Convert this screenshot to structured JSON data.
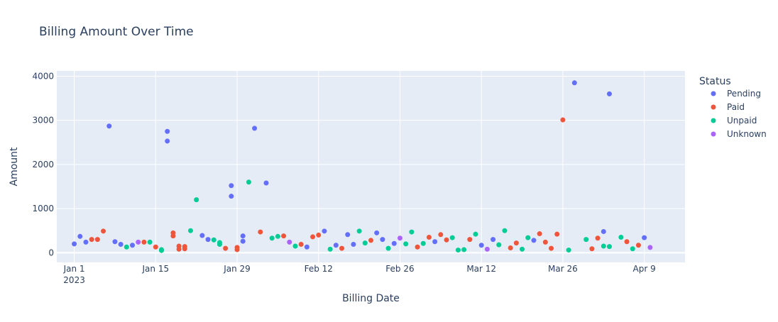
{
  "colors": {
    "plot_bg": "#e5ecf6",
    "paper_bg": "#ffffff",
    "grid": "#ffffff",
    "text": "#2a3f5f"
  },
  "chart_data": {
    "type": "scatter",
    "title": "Billing Amount Over Time",
    "xlabel": "Billing Date",
    "ylabel": "Amount",
    "xlim": [
      "2022-12-29",
      "2023-04-16"
    ],
    "ylim": [
      -220,
      4120
    ],
    "x_ticks": [
      {
        "date": "2023-01-01",
        "label": "Jan 1",
        "sublabel": "2023"
      },
      {
        "date": "2023-01-15",
        "label": "Jan 15"
      },
      {
        "date": "2023-01-29",
        "label": "Jan 29"
      },
      {
        "date": "2023-02-12",
        "label": "Feb 12"
      },
      {
        "date": "2023-02-26",
        "label": "Feb 26"
      },
      {
        "date": "2023-03-12",
        "label": "Mar 12"
      },
      {
        "date": "2023-03-26",
        "label": "Mar 26"
      },
      {
        "date": "2023-04-09",
        "label": "Apr 9"
      }
    ],
    "y_ticks": [
      0,
      1000,
      2000,
      3000,
      4000
    ],
    "y_tick_labels": [
      "0",
      "1000",
      "2000",
      "3000",
      "4000"
    ],
    "grid": true,
    "legend": {
      "title": "Status",
      "position": "right"
    },
    "series": [
      {
        "name": "Pending",
        "color": "#636efa",
        "points": [
          {
            "x": "2023-01-01",
            "y": 200
          },
          {
            "x": "2023-01-02",
            "y": 370
          },
          {
            "x": "2023-01-03",
            "y": 240
          },
          {
            "x": "2023-01-07",
            "y": 2870
          },
          {
            "x": "2023-01-08",
            "y": 250
          },
          {
            "x": "2023-01-09",
            "y": 190
          },
          {
            "x": "2023-01-11",
            "y": 170
          },
          {
            "x": "2023-01-17",
            "y": 2750
          },
          {
            "x": "2023-01-17",
            "y": 2530
          },
          {
            "x": "2023-01-23",
            "y": 390
          },
          {
            "x": "2023-01-24",
            "y": 300
          },
          {
            "x": "2023-01-28",
            "y": 1520
          },
          {
            "x": "2023-01-28",
            "y": 1280
          },
          {
            "x": "2023-01-30",
            "y": 380
          },
          {
            "x": "2023-01-30",
            "y": 260
          },
          {
            "x": "2023-02-01",
            "y": 2820
          },
          {
            "x": "2023-02-03",
            "y": 1580
          },
          {
            "x": "2023-02-10",
            "y": 130
          },
          {
            "x": "2023-02-13",
            "y": 490
          },
          {
            "x": "2023-02-15",
            "y": 170
          },
          {
            "x": "2023-02-17",
            "y": 410
          },
          {
            "x": "2023-02-18",
            "y": 190
          },
          {
            "x": "2023-02-22",
            "y": 450
          },
          {
            "x": "2023-02-23",
            "y": 300
          },
          {
            "x": "2023-02-25",
            "y": 210
          },
          {
            "x": "2023-03-04",
            "y": 250
          },
          {
            "x": "2023-03-12",
            "y": 170
          },
          {
            "x": "2023-03-14",
            "y": 300
          },
          {
            "x": "2023-03-21",
            "y": 280
          },
          {
            "x": "2023-03-28",
            "y": 3850
          },
          {
            "x": "2023-04-02",
            "y": 480
          },
          {
            "x": "2023-04-03",
            "y": 3600
          },
          {
            "x": "2023-04-09",
            "y": 340
          }
        ]
      },
      {
        "name": "Paid",
        "color": "#ef553b",
        "points": [
          {
            "x": "2023-01-04",
            "y": 300
          },
          {
            "x": "2023-01-05",
            "y": 300
          },
          {
            "x": "2023-01-06",
            "y": 490
          },
          {
            "x": "2023-01-13",
            "y": 240
          },
          {
            "x": "2023-01-15",
            "y": 130
          },
          {
            "x": "2023-01-18",
            "y": 450
          },
          {
            "x": "2023-01-18",
            "y": 380
          },
          {
            "x": "2023-01-19",
            "y": 150
          },
          {
            "x": "2023-01-19",
            "y": 80
          },
          {
            "x": "2023-01-20",
            "y": 140
          },
          {
            "x": "2023-01-20",
            "y": 90
          },
          {
            "x": "2023-01-27",
            "y": 100
          },
          {
            "x": "2023-01-29",
            "y": 120
          },
          {
            "x": "2023-01-29",
            "y": 70
          },
          {
            "x": "2023-02-02",
            "y": 470
          },
          {
            "x": "2023-02-06",
            "y": 380
          },
          {
            "x": "2023-02-09",
            "y": 190
          },
          {
            "x": "2023-02-11",
            "y": 360
          },
          {
            "x": "2023-02-12",
            "y": 400
          },
          {
            "x": "2023-02-16",
            "y": 100
          },
          {
            "x": "2023-02-21",
            "y": 280
          },
          {
            "x": "2023-03-01",
            "y": 130
          },
          {
            "x": "2023-03-03",
            "y": 350
          },
          {
            "x": "2023-03-05",
            "y": 410
          },
          {
            "x": "2023-03-06",
            "y": 290
          },
          {
            "x": "2023-03-10",
            "y": 300
          },
          {
            "x": "2023-03-17",
            "y": 110
          },
          {
            "x": "2023-03-18",
            "y": 220
          },
          {
            "x": "2023-03-22",
            "y": 430
          },
          {
            "x": "2023-03-23",
            "y": 240
          },
          {
            "x": "2023-03-24",
            "y": 100
          },
          {
            "x": "2023-03-25",
            "y": 420
          },
          {
            "x": "2023-03-26",
            "y": 3010
          },
          {
            "x": "2023-03-31",
            "y": 90
          },
          {
            "x": "2023-04-01",
            "y": 330
          },
          {
            "x": "2023-04-06",
            "y": 250
          },
          {
            "x": "2023-04-08",
            "y": 170
          }
        ]
      },
      {
        "name": "Unpaid",
        "color": "#00cc96",
        "points": [
          {
            "x": "2023-01-10",
            "y": 130
          },
          {
            "x": "2023-01-14",
            "y": 240
          },
          {
            "x": "2023-01-16",
            "y": 70
          },
          {
            "x": "2023-01-16",
            "y": 50
          },
          {
            "x": "2023-01-21",
            "y": 500
          },
          {
            "x": "2023-01-22",
            "y": 1200
          },
          {
            "x": "2023-01-25",
            "y": 290
          },
          {
            "x": "2023-01-26",
            "y": 230
          },
          {
            "x": "2023-01-26",
            "y": 190
          },
          {
            "x": "2023-01-31",
            "y": 1600
          },
          {
            "x": "2023-02-04",
            "y": 330
          },
          {
            "x": "2023-02-05",
            "y": 370
          },
          {
            "x": "2023-02-08",
            "y": 150
          },
          {
            "x": "2023-02-14",
            "y": 80
          },
          {
            "x": "2023-02-19",
            "y": 490
          },
          {
            "x": "2023-02-20",
            "y": 220
          },
          {
            "x": "2023-02-24",
            "y": 100
          },
          {
            "x": "2023-02-27",
            "y": 200
          },
          {
            "x": "2023-02-28",
            "y": 470
          },
          {
            "x": "2023-03-02",
            "y": 210
          },
          {
            "x": "2023-03-07",
            "y": 340
          },
          {
            "x": "2023-03-08",
            "y": 60
          },
          {
            "x": "2023-03-09",
            "y": 70
          },
          {
            "x": "2023-03-11",
            "y": 420
          },
          {
            "x": "2023-03-15",
            "y": 180
          },
          {
            "x": "2023-03-16",
            "y": 500
          },
          {
            "x": "2023-03-19",
            "y": 80
          },
          {
            "x": "2023-03-20",
            "y": 340
          },
          {
            "x": "2023-03-27",
            "y": 60
          },
          {
            "x": "2023-03-30",
            "y": 300
          },
          {
            "x": "2023-04-02",
            "y": 150
          },
          {
            "x": "2023-04-03",
            "y": 140
          },
          {
            "x": "2023-04-05",
            "y": 350
          },
          {
            "x": "2023-04-07",
            "y": 90
          }
        ]
      },
      {
        "name": "Unknown",
        "color": "#ab63fa",
        "points": [
          {
            "x": "2023-01-12",
            "y": 240
          },
          {
            "x": "2023-02-07",
            "y": 240
          },
          {
            "x": "2023-02-26",
            "y": 330
          },
          {
            "x": "2023-03-13",
            "y": 80
          },
          {
            "x": "2023-04-10",
            "y": 120
          }
        ]
      }
    ]
  }
}
